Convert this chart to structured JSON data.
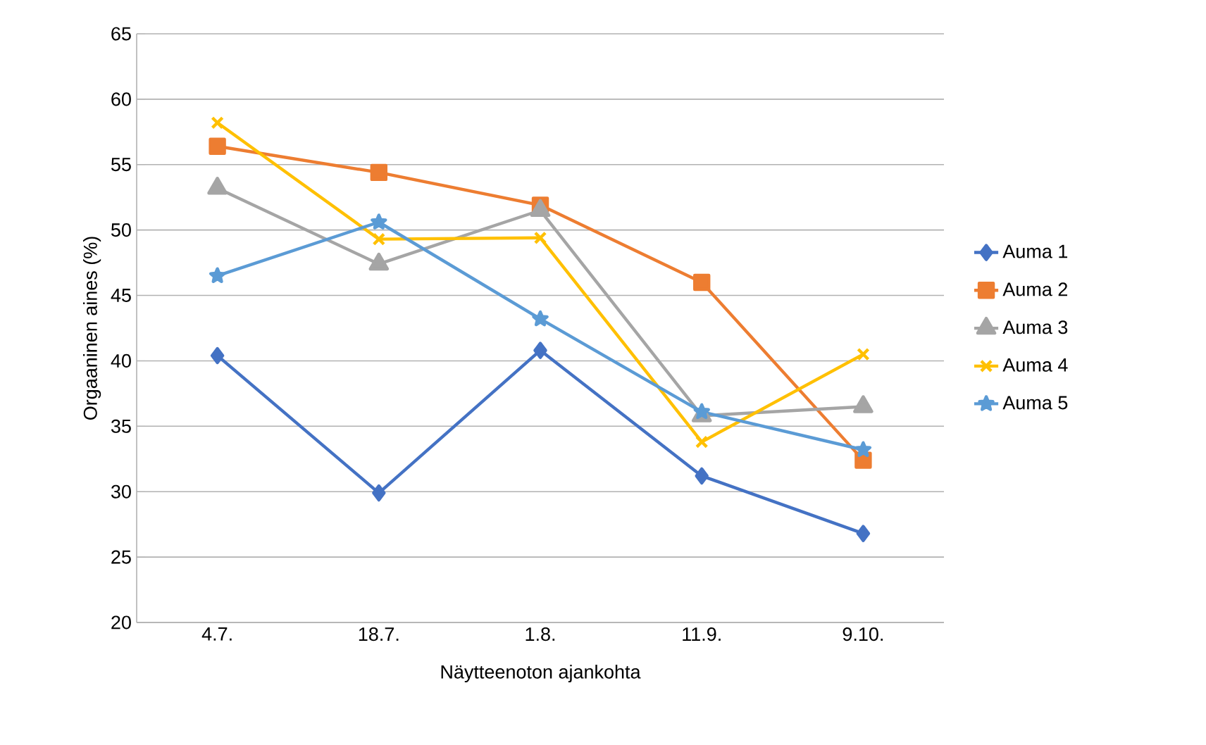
{
  "chart_data": {
    "type": "line",
    "xlabel": "Näytteenoton ajankohta",
    "ylabel": "Orgaaninen aines (%)",
    "categories": [
      "4.7.",
      "18.7.",
      "1.8.",
      "11.9.",
      "9.10."
    ],
    "series": [
      {
        "name": "Auma 1",
        "color": "#4472c4",
        "marker": "diamond",
        "values": [
          40.4,
          29.9,
          40.8,
          31.2,
          26.8
        ]
      },
      {
        "name": "Auma 2",
        "color": "#ed7d31",
        "marker": "square",
        "values": [
          56.4,
          54.4,
          51.9,
          46.0,
          32.4
        ]
      },
      {
        "name": "Auma 3",
        "color": "#a5a5a5",
        "marker": "triangle",
        "values": [
          53.2,
          47.4,
          51.5,
          35.8,
          36.5
        ]
      },
      {
        "name": "Auma 4",
        "color": "#ffc000",
        "marker": "cross",
        "values": [
          58.2,
          49.3,
          49.4,
          33.8,
          40.5
        ]
      },
      {
        "name": "Auma 5",
        "color": "#5b9bd5",
        "marker": "star",
        "values": [
          46.5,
          50.6,
          43.2,
          36.1,
          33.2
        ]
      }
    ],
    "ylim": [
      20,
      65
    ],
    "yticks": [
      20,
      25,
      30,
      35,
      40,
      45,
      50,
      55,
      60,
      65
    ],
    "grid": "y",
    "legend": "right",
    "line_style": "solid"
  }
}
